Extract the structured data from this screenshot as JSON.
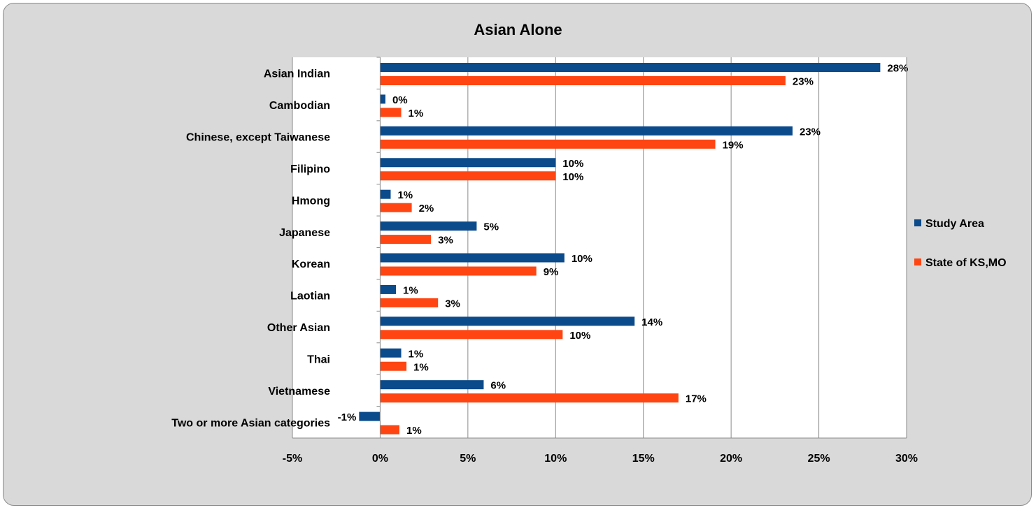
{
  "chart_data": {
    "type": "bar",
    "orientation": "horizontal",
    "title": "Asian Alone",
    "categories": [
      "Asian Indian",
      "Cambodian",
      "Chinese, except Taiwanese",
      "Filipino",
      "Hmong",
      "Japanese",
      "Korean",
      "Laotian",
      "Other Asian",
      "Thai",
      "Vietnamese",
      "Two or more Asian categories"
    ],
    "series": [
      {
        "name": "Study Area",
        "color": "#0b4a8b",
        "values": [
          28.5,
          0.3,
          23.5,
          10.0,
          0.6,
          5.5,
          10.5,
          0.9,
          14.5,
          1.2,
          5.9,
          -1.2
        ],
        "labels": [
          "28%",
          "0%",
          "23%",
          "10%",
          "1%",
          "5%",
          "10%",
          "1%",
          "14%",
          "1%",
          "6%",
          "-1%"
        ]
      },
      {
        "name": "State of KS,MO",
        "color": "#ff4512",
        "values": [
          23.1,
          1.2,
          19.1,
          10.0,
          1.8,
          2.9,
          8.9,
          3.3,
          10.4,
          1.5,
          17.0,
          1.1
        ],
        "labels": [
          "23%",
          "1%",
          "19%",
          "10%",
          "2%",
          "3%",
          "9%",
          "3%",
          "10%",
          "1%",
          "17%",
          "1%"
        ]
      }
    ],
    "xlim": [
      -5,
      30
    ],
    "xticks": [
      -5,
      0,
      5,
      10,
      15,
      20,
      25,
      30
    ],
    "xtick_labels": [
      "-5%",
      "0%",
      "5%",
      "10%",
      "15%",
      "20%",
      "25%",
      "30%"
    ],
    "grid": "vertical",
    "legend": "right"
  }
}
